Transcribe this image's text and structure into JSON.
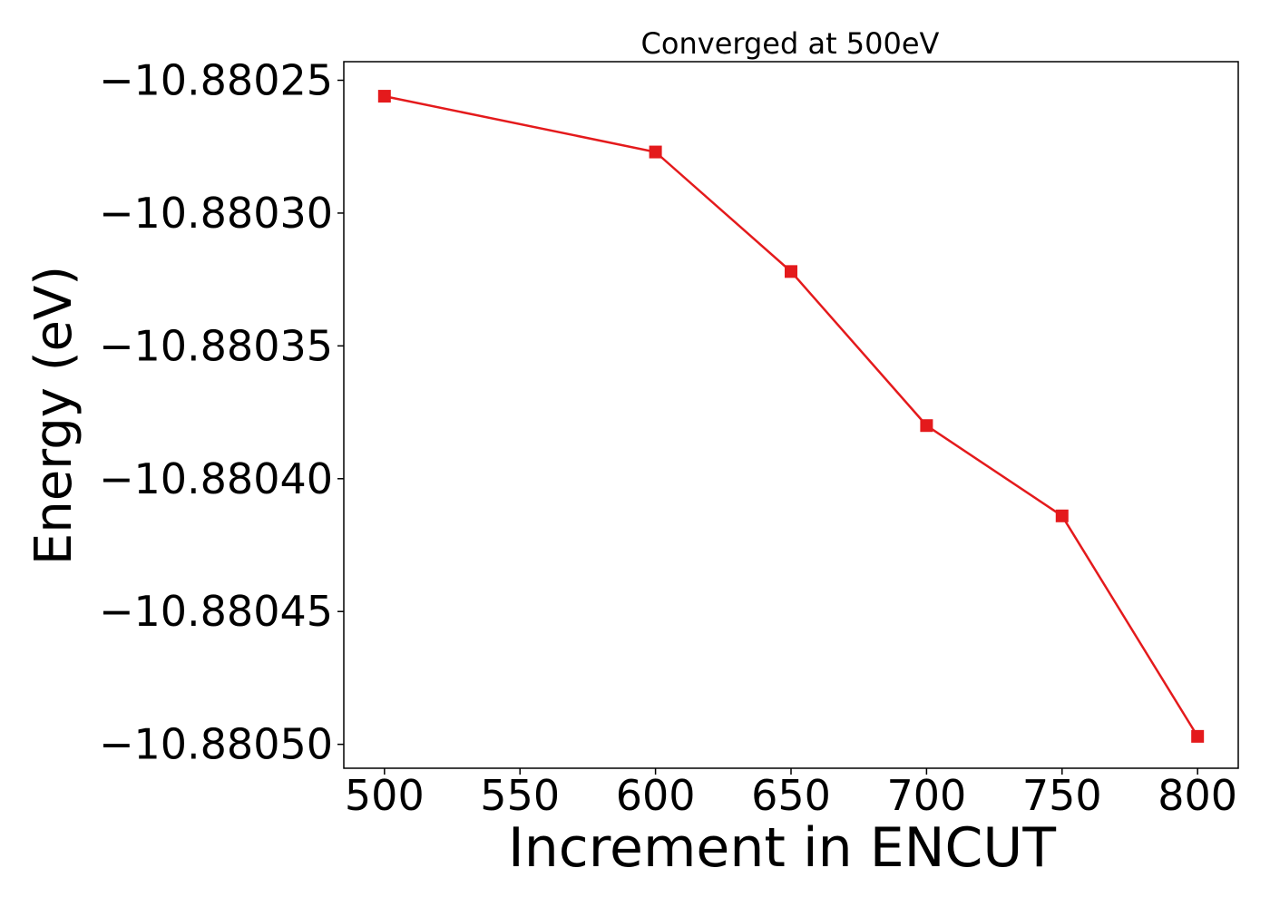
{
  "chart_data": {
    "type": "line",
    "title": "Converged at 500eV",
    "xlabel": "Increment in ENCUT",
    "ylabel": "Energy (eV)",
    "x": [
      500,
      600,
      650,
      700,
      750,
      800
    ],
    "series": [
      {
        "values": [
          -10.880256,
          -10.880277,
          -10.880322,
          -10.88038,
          -10.880414,
          -10.880497
        ],
        "color": "#e41a1c",
        "marker": "square"
      }
    ],
    "xlim": [
      485,
      815
    ],
    "ylim": [
      -10.880509,
      -10.880243
    ],
    "xticks": [
      500,
      550,
      600,
      650,
      700,
      750,
      800
    ],
    "xtick_labels": [
      "500",
      "550",
      "600",
      "650",
      "700",
      "750",
      "800"
    ],
    "yticks": [
      -10.88025,
      -10.8803,
      -10.88035,
      -10.8804,
      -10.88045,
      -10.8805
    ],
    "ytick_labels": [
      "−10.88025",
      "−10.88030",
      "−10.88035",
      "−10.88040",
      "−10.88045",
      "−10.88050"
    ],
    "grid": false,
    "legend": false
  }
}
